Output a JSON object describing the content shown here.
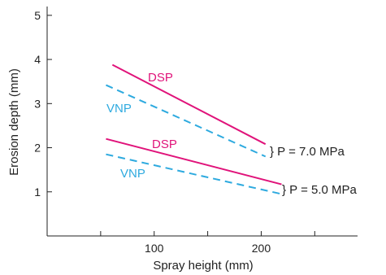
{
  "chart_data": {
    "type": "line",
    "xlabel": "Spray height (mm)",
    "ylabel": "Erosion depth (mm)",
    "xlim": [
      0,
      290
    ],
    "ylim": [
      0,
      5.2
    ],
    "xticks": [
      100,
      200
    ],
    "xminor_ticks": [
      50,
      100,
      150,
      200,
      250
    ],
    "yticks": [
      1,
      2,
      3,
      4,
      5
    ],
    "grid": false,
    "series": [
      {
        "name": "DSP",
        "group": "P = 7.0 MPa",
        "color": "#e0137a",
        "dashed": false,
        "x": [
          61,
          204
        ],
        "y": [
          3.88,
          2.08
        ]
      },
      {
        "name": "VNP",
        "group": "P = 7.0 MPa",
        "color": "#2eaadf",
        "dashed": true,
        "x": [
          55,
          204
        ],
        "y": [
          3.42,
          1.8
        ]
      },
      {
        "name": "DSP",
        "group": "P = 5.0 MPa",
        "color": "#e0137a",
        "dashed": false,
        "x": [
          55,
          219
        ],
        "y": [
          2.2,
          1.17
        ]
      },
      {
        "name": "VNP",
        "group": "P = 5.0 MPa",
        "color": "#2eaadf",
        "dashed": true,
        "x": [
          55,
          219
        ],
        "y": [
          1.85,
          0.95
        ]
      }
    ],
    "annotations": {
      "upper_group": "} P = 7.0 MPa",
      "lower_group": "} P = 5.0 MPa"
    }
  }
}
